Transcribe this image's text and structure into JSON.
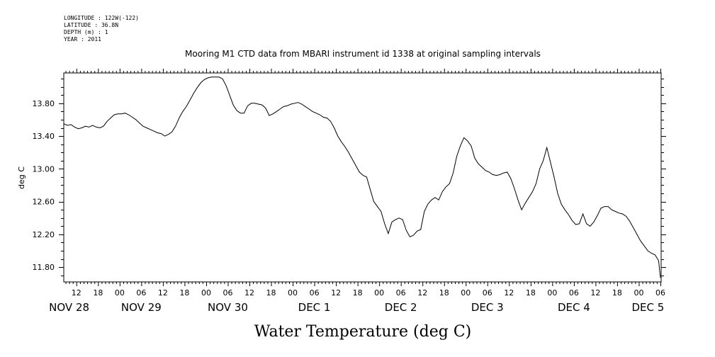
{
  "header": {
    "longitude": "LONGITUDE : 122W(-122)",
    "latitude": "LATITUDE : 36.8N",
    "depth": "DEPTH (m) : 1",
    "year": "YEAR : 2011"
  },
  "chart_data": {
    "type": "line",
    "title": "Mooring M1 CTD data from MBARI instrument id 1338 at original sampling intervals",
    "xlabel": "Water Temperature (deg C)",
    "ylabel": "deg C",
    "ylim": [
      11.62,
      14.17
    ],
    "yticks": [
      11.8,
      12.2,
      12.6,
      13.0,
      13.4,
      13.8
    ],
    "ytick_labels": [
      "11.80",
      "12.20",
      "12.60",
      "13.00",
      "13.40",
      "13.80"
    ],
    "x_unit": "hours since NOV 28 00:00",
    "xlim": [
      8.5,
      174.2
    ],
    "hour_ticks": [
      {
        "h": 12,
        "label": "12"
      },
      {
        "h": 18,
        "label": "18"
      },
      {
        "h": 24,
        "label": "00"
      },
      {
        "h": 30,
        "label": "06"
      },
      {
        "h": 36,
        "label": "12"
      },
      {
        "h": 42,
        "label": "18"
      },
      {
        "h": 48,
        "label": "00"
      },
      {
        "h": 54,
        "label": "06"
      },
      {
        "h": 60,
        "label": "12"
      },
      {
        "h": 66,
        "label": "18"
      },
      {
        "h": 72,
        "label": "00"
      },
      {
        "h": 78,
        "label": "06"
      },
      {
        "h": 84,
        "label": "12"
      },
      {
        "h": 90,
        "label": "18"
      },
      {
        "h": 96,
        "label": "00"
      },
      {
        "h": 102,
        "label": "06"
      },
      {
        "h": 108,
        "label": "12"
      },
      {
        "h": 114,
        "label": "18"
      },
      {
        "h": 120,
        "label": "00"
      },
      {
        "h": 126,
        "label": "06"
      },
      {
        "h": 132,
        "label": "12"
      },
      {
        "h": 138,
        "label": "18"
      },
      {
        "h": 144,
        "label": "00"
      },
      {
        "h": 150,
        "label": "06"
      },
      {
        "h": 156,
        "label": "12"
      },
      {
        "h": 162,
        "label": "18"
      },
      {
        "h": 168,
        "label": "00"
      },
      {
        "h": 174,
        "label": "06"
      }
    ],
    "day_labels": [
      {
        "h": 10,
        "label": "NOV 28"
      },
      {
        "h": 30,
        "label": "NOV 29"
      },
      {
        "h": 54,
        "label": "NOV 30"
      },
      {
        "h": 78,
        "label": "DEC  1"
      },
      {
        "h": 102,
        "label": "DEC  2"
      },
      {
        "h": 126,
        "label": "DEC  3"
      },
      {
        "h": 150,
        "label": "DEC  4"
      },
      {
        "h": 168,
        "label": "DEC  5"
      }
    ],
    "grid": false,
    "series": [
      {
        "color": "#000000",
        "points": [
          [
            8.5,
            13.55
          ],
          [
            9.5,
            13.53
          ],
          [
            10.5,
            13.54
          ],
          [
            11.5,
            13.51
          ],
          [
            12.5,
            13.49
          ],
          [
            13.5,
            13.5
          ],
          [
            14.5,
            13.52
          ],
          [
            15.5,
            13.51
          ],
          [
            16.5,
            13.53
          ],
          [
            17.5,
            13.51
          ],
          [
            18.5,
            13.5
          ],
          [
            19.5,
            13.52
          ],
          [
            20.5,
            13.58
          ],
          [
            21.5,
            13.62
          ],
          [
            22.5,
            13.66
          ],
          [
            23.5,
            13.67
          ],
          [
            24.5,
            13.67
          ],
          [
            25.5,
            13.68
          ],
          [
            26.5,
            13.66
          ],
          [
            27.5,
            13.63
          ],
          [
            28.5,
            13.6
          ],
          [
            29.5,
            13.56
          ],
          [
            30.5,
            13.52
          ],
          [
            31.5,
            13.5
          ],
          [
            32.5,
            13.48
          ],
          [
            33.5,
            13.46
          ],
          [
            34.5,
            13.44
          ],
          [
            35.5,
            13.43
          ],
          [
            36.5,
            13.4
          ],
          [
            37.5,
            13.42
          ],
          [
            38.5,
            13.45
          ],
          [
            39.5,
            13.52
          ],
          [
            40.5,
            13.62
          ],
          [
            41.5,
            13.7
          ],
          [
            42.5,
            13.76
          ],
          [
            43.5,
            13.84
          ],
          [
            44.5,
            13.92
          ],
          [
            45.5,
            13.99
          ],
          [
            46.5,
            14.05
          ],
          [
            47.5,
            14.09
          ],
          [
            48.5,
            14.11
          ],
          [
            49.5,
            14.12
          ],
          [
            50.5,
            14.12
          ],
          [
            51.5,
            14.12
          ],
          [
            52.5,
            14.1
          ],
          [
            53.5,
            14.02
          ],
          [
            54.5,
            13.9
          ],
          [
            55.5,
            13.78
          ],
          [
            56.5,
            13.71
          ],
          [
            57.5,
            13.68
          ],
          [
            58.5,
            13.68
          ],
          [
            59.5,
            13.77
          ],
          [
            60.5,
            13.8
          ],
          [
            61.5,
            13.8
          ],
          [
            62.5,
            13.79
          ],
          [
            63.5,
            13.78
          ],
          [
            64.5,
            13.74
          ],
          [
            65.5,
            13.65
          ],
          [
            66.5,
            13.67
          ],
          [
            67.5,
            13.7
          ],
          [
            68.5,
            13.73
          ],
          [
            69.5,
            13.76
          ],
          [
            70.5,
            13.77
          ],
          [
            71.5,
            13.79
          ],
          [
            72.5,
            13.8
          ],
          [
            73.5,
            13.81
          ],
          [
            74.5,
            13.79
          ],
          [
            75.5,
            13.76
          ],
          [
            76.5,
            13.73
          ],
          [
            77.5,
            13.7
          ],
          [
            78.5,
            13.68
          ],
          [
            79.5,
            13.66
          ],
          [
            80.5,
            13.63
          ],
          [
            81.5,
            13.62
          ],
          [
            82.5,
            13.58
          ],
          [
            83.5,
            13.5
          ],
          [
            84.5,
            13.4
          ],
          [
            85.5,
            13.33
          ],
          [
            86.5,
            13.27
          ],
          [
            87.5,
            13.2
          ],
          [
            88.5,
            13.12
          ],
          [
            89.5,
            13.04
          ],
          [
            90.5,
            12.96
          ],
          [
            91.5,
            12.92
          ],
          [
            92.5,
            12.9
          ],
          [
            93.5,
            12.75
          ],
          [
            94.5,
            12.6
          ],
          [
            95.5,
            12.54
          ],
          [
            96.5,
            12.48
          ],
          [
            97.5,
            12.33
          ],
          [
            98.5,
            12.21
          ],
          [
            99.5,
            12.35
          ],
          [
            100.5,
            12.38
          ],
          [
            101.5,
            12.4
          ],
          [
            102.5,
            12.38
          ],
          [
            103.5,
            12.25
          ],
          [
            104.5,
            12.17
          ],
          [
            105.5,
            12.19
          ],
          [
            106.5,
            12.24
          ],
          [
            107.5,
            12.26
          ],
          [
            108.5,
            12.48
          ],
          [
            109.5,
            12.57
          ],
          [
            110.5,
            12.62
          ],
          [
            111.5,
            12.65
          ],
          [
            112.5,
            12.62
          ],
          [
            113.5,
            12.72
          ],
          [
            114.5,
            12.78
          ],
          [
            115.5,
            12.82
          ],
          [
            116.5,
            12.95
          ],
          [
            117.5,
            13.15
          ],
          [
            118.5,
            13.28
          ],
          [
            119.5,
            13.38
          ],
          [
            120.5,
            13.34
          ],
          [
            121.5,
            13.28
          ],
          [
            122.5,
            13.13
          ],
          [
            123.5,
            13.06
          ],
          [
            124.5,
            13.02
          ],
          [
            125.5,
            12.98
          ],
          [
            126.5,
            12.96
          ],
          [
            127.5,
            12.93
          ],
          [
            128.5,
            12.92
          ],
          [
            129.5,
            12.93
          ],
          [
            130.5,
            12.95
          ],
          [
            131.5,
            12.96
          ],
          [
            132.5,
            12.88
          ],
          [
            133.5,
            12.76
          ],
          [
            134.5,
            12.62
          ],
          [
            135.5,
            12.5
          ],
          [
            136.5,
            12.58
          ],
          [
            137.5,
            12.65
          ],
          [
            138.5,
            12.72
          ],
          [
            139.5,
            12.82
          ],
          [
            140.5,
            13.0
          ],
          [
            141.5,
            13.1
          ],
          [
            142.5,
            13.26
          ],
          [
            143.5,
            13.08
          ],
          [
            144.5,
            12.9
          ],
          [
            145.5,
            12.7
          ],
          [
            146.5,
            12.57
          ],
          [
            147.5,
            12.5
          ],
          [
            148.5,
            12.44
          ],
          [
            149.5,
            12.37
          ],
          [
            150.5,
            12.32
          ],
          [
            151.5,
            12.33
          ],
          [
            152.5,
            12.45
          ],
          [
            153.5,
            12.33
          ],
          [
            154.5,
            12.3
          ],
          [
            155.5,
            12.35
          ],
          [
            156.5,
            12.43
          ],
          [
            157.5,
            12.52
          ],
          [
            158.5,
            12.54
          ],
          [
            159.5,
            12.54
          ],
          [
            160.5,
            12.5
          ],
          [
            161.5,
            12.48
          ],
          [
            162.5,
            12.46
          ],
          [
            163.5,
            12.45
          ],
          [
            164.5,
            12.42
          ],
          [
            165.5,
            12.36
          ],
          [
            166.5,
            12.28
          ],
          [
            167.5,
            12.2
          ],
          [
            168.5,
            12.12
          ],
          [
            169.5,
            12.06
          ],
          [
            170.5,
            12.0
          ],
          [
            171.5,
            11.97
          ],
          [
            172.5,
            11.95
          ],
          [
            173.5,
            11.88
          ],
          [
            174.0,
            11.67
          ]
        ]
      }
    ]
  }
}
